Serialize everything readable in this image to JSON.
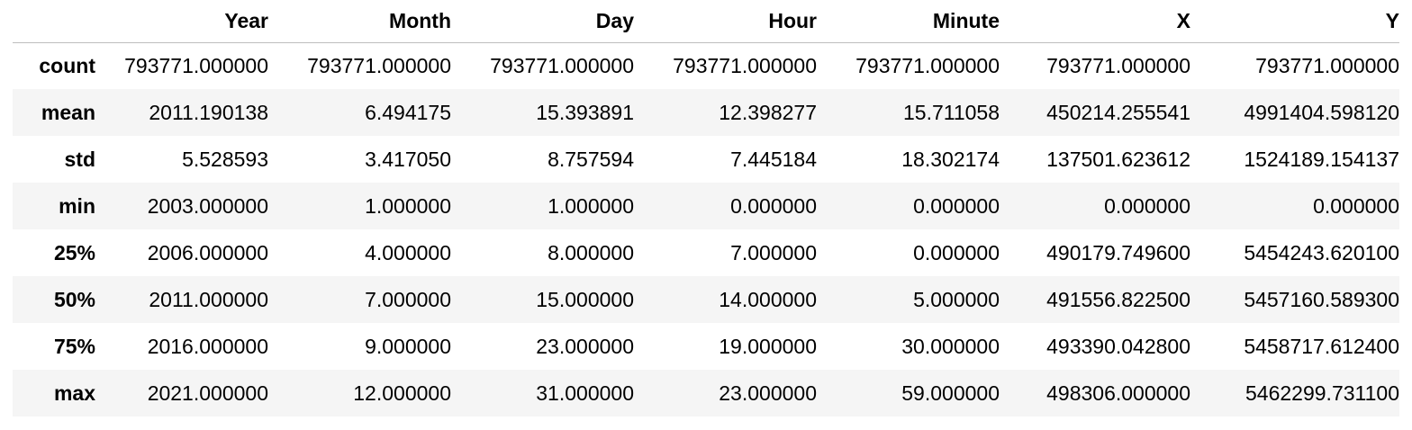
{
  "table": {
    "columns": [
      "Year",
      "Month",
      "Day",
      "Hour",
      "Minute",
      "X",
      "Y"
    ],
    "rows": [
      {
        "label": "count",
        "values": [
          "793771.000000",
          "793771.000000",
          "793771.000000",
          "793771.000000",
          "793771.000000",
          "793771.000000",
          "793771.000000"
        ]
      },
      {
        "label": "mean",
        "values": [
          "2011.190138",
          "6.494175",
          "15.393891",
          "12.398277",
          "15.711058",
          "450214.255541",
          "4991404.598120"
        ]
      },
      {
        "label": "std",
        "values": [
          "5.528593",
          "3.417050",
          "8.757594",
          "7.445184",
          "18.302174",
          "137501.623612",
          "1524189.154137"
        ]
      },
      {
        "label": "min",
        "values": [
          "2003.000000",
          "1.000000",
          "1.000000",
          "0.000000",
          "0.000000",
          "0.000000",
          "0.000000"
        ]
      },
      {
        "label": "25%",
        "values": [
          "2006.000000",
          "4.000000",
          "8.000000",
          "7.000000",
          "0.000000",
          "490179.749600",
          "5454243.620100"
        ]
      },
      {
        "label": "50%",
        "values": [
          "2011.000000",
          "7.000000",
          "15.000000",
          "14.000000",
          "5.000000",
          "491556.822500",
          "5457160.589300"
        ]
      },
      {
        "label": "75%",
        "values": [
          "2016.000000",
          "9.000000",
          "23.000000",
          "19.000000",
          "30.000000",
          "493390.042800",
          "5458717.612400"
        ]
      },
      {
        "label": "max",
        "values": [
          "2021.000000",
          "12.000000",
          "31.000000",
          "23.000000",
          "59.000000",
          "498306.000000",
          "5462299.731100"
        ]
      }
    ]
  }
}
